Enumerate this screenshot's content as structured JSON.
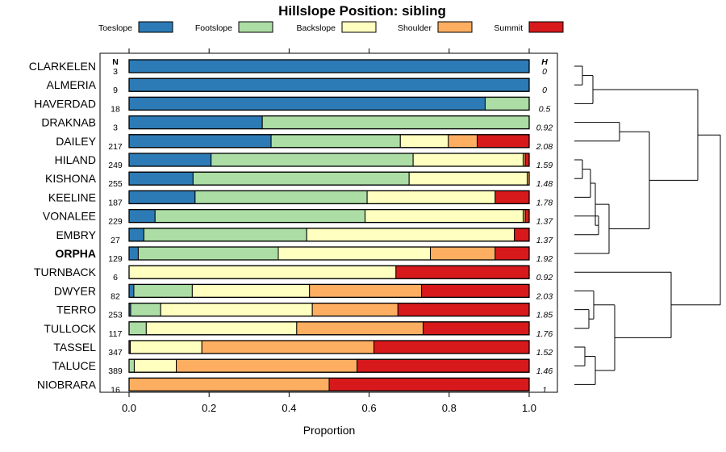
{
  "chart_data": {
    "type": "bar",
    "stacked": true,
    "orientation": "horizontal",
    "title": "Hillslope Position: sibling",
    "xlabel": "Proportion",
    "ylabel": "",
    "xlim": [
      0,
      1
    ],
    "xticks": [
      "0.0",
      "0.2",
      "0.4",
      "0.6",
      "0.8",
      "1.0"
    ],
    "n_header": "N",
    "h_header": "H",
    "legend": [
      {
        "name": "Toeslope",
        "color": "#2c7bb6"
      },
      {
        "name": "Footslope",
        "color": "#abdda4"
      },
      {
        "name": "Backslope",
        "color": "#ffffbf"
      },
      {
        "name": "Shoulder",
        "color": "#fdae61"
      },
      {
        "name": "Summit",
        "color": "#d7191c"
      }
    ],
    "rows": [
      {
        "name": "CLARKELEN",
        "n": "3",
        "h": "0",
        "values": [
          1.0,
          0,
          0,
          0,
          0
        ]
      },
      {
        "name": "ALMERIA",
        "n": "9",
        "h": "0",
        "values": [
          1.0,
          0,
          0,
          0,
          0
        ]
      },
      {
        "name": "HAVERDAD",
        "n": "18",
        "h": "0.5",
        "values": [
          0.89,
          0.11,
          0,
          0,
          0
        ]
      },
      {
        "name": "DRAKNAB",
        "n": "3",
        "h": "0.92",
        "values": [
          0.333,
          0.667,
          0,
          0,
          0
        ]
      },
      {
        "name": "DAILEY",
        "n": "217",
        "h": "2.08",
        "values": [
          0.355,
          0.323,
          0.12,
          0.072,
          0.13
        ]
      },
      {
        "name": "HILAND",
        "n": "249",
        "h": "1.59",
        "values": [
          0.205,
          0.505,
          0.275,
          0.005,
          0.01
        ]
      },
      {
        "name": "KISHONA",
        "n": "255",
        "h": "1.48",
        "values": [
          0.16,
          0.54,
          0.295,
          0.005,
          0
        ]
      },
      {
        "name": "KEELINE",
        "n": "187",
        "h": "1.78",
        "values": [
          0.165,
          0.43,
          0.32,
          0,
          0.085
        ]
      },
      {
        "name": "VONALEE",
        "n": "229",
        "h": "1.37",
        "values": [
          0.065,
          0.525,
          0.395,
          0.005,
          0.01
        ]
      },
      {
        "name": "EMBRY",
        "n": "27",
        "h": "1.37",
        "values": [
          0.037,
          0.407,
          0.519,
          0,
          0.037
        ]
      },
      {
        "name": "ORPHA",
        "n": "129",
        "h": "1.92",
        "values": [
          0.023,
          0.35,
          0.38,
          0.162,
          0.085
        ],
        "bold": true
      },
      {
        "name": "TURNBACK",
        "n": "6",
        "h": "0.92",
        "values": [
          0,
          0,
          0.667,
          0,
          0.333
        ]
      },
      {
        "name": "DWYER",
        "n": "82",
        "h": "2.03",
        "values": [
          0.012,
          0.146,
          0.293,
          0.28,
          0.269
        ]
      },
      {
        "name": "TERRO",
        "n": "253",
        "h": "1.85",
        "values": [
          0.004,
          0.075,
          0.379,
          0.214,
          0.328
        ]
      },
      {
        "name": "TULLOCK",
        "n": "117",
        "h": "1.76",
        "values": [
          0,
          0.043,
          0.376,
          0.316,
          0.265
        ]
      },
      {
        "name": "TASSEL",
        "n": "347",
        "h": "1.52",
        "values": [
          0.003,
          0,
          0.179,
          0.43,
          0.388
        ]
      },
      {
        "name": "TALUCE",
        "n": "389",
        "h": "1.46",
        "values": [
          0,
          0.013,
          0.105,
          0.452,
          0.43
        ]
      },
      {
        "name": "NIOBRARA",
        "n": "16",
        "h": "1",
        "values": [
          0,
          0,
          0,
          0.5,
          0.5
        ]
      }
    ]
  }
}
